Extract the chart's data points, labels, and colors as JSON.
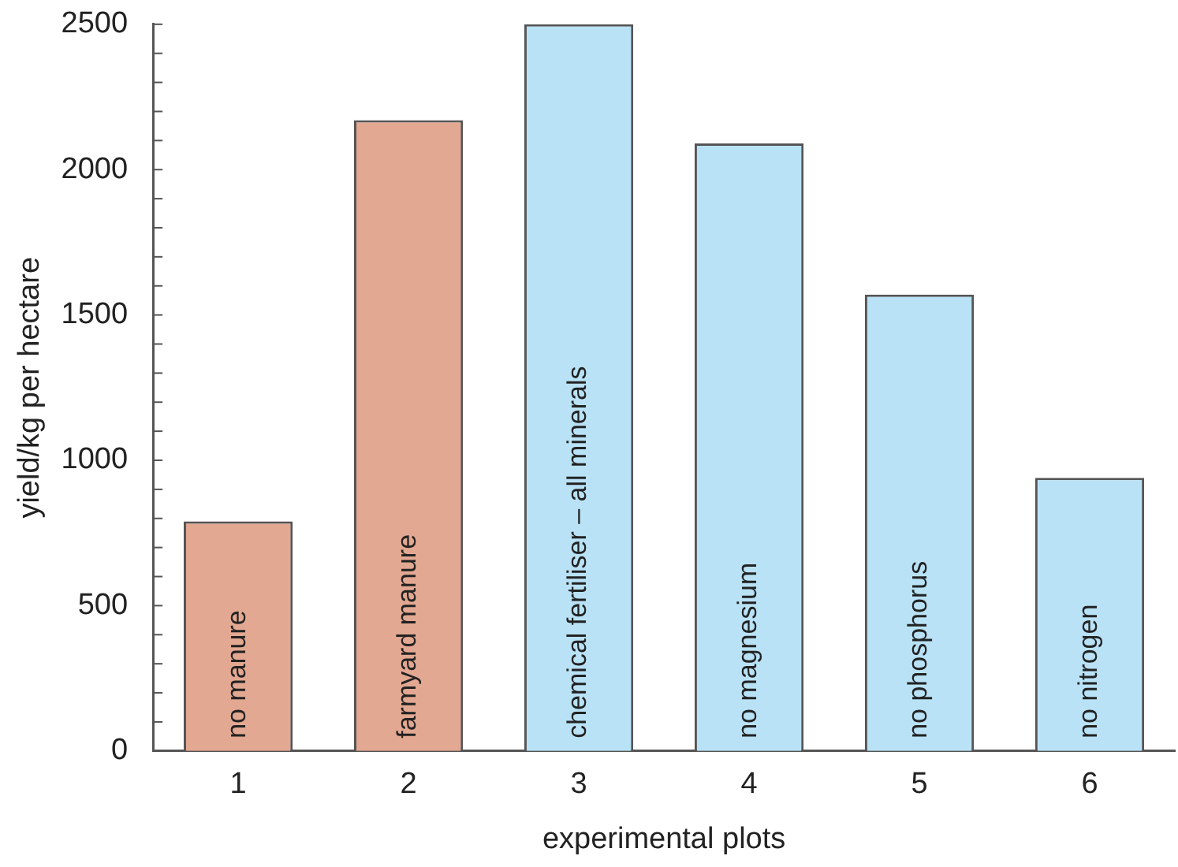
{
  "chart_data": {
    "type": "bar",
    "xlabel": "experimental plots",
    "ylabel": "yield/kg per hectare",
    "categories": [
      "1",
      "2",
      "3",
      "4",
      "5",
      "6"
    ],
    "values": [
      790,
      2170,
      2500,
      2090,
      1570,
      940
    ],
    "colors": [
      "#e3a892",
      "#e3a892",
      "#b9e2f6",
      "#b9e2f6",
      "#b9e2f6",
      "#b9e2f6"
    ],
    "ylim": [
      0,
      2500
    ],
    "yticks": [
      0,
      500,
      1000,
      1500,
      2000,
      2500
    ],
    "grid": false,
    "legend": false,
    "annotations": [
      "no manure",
      "farmyard manure",
      "chemical fertiliser – all minerals",
      "no magnesium",
      "no phosphorus",
      "no nitrogen"
    ]
  }
}
